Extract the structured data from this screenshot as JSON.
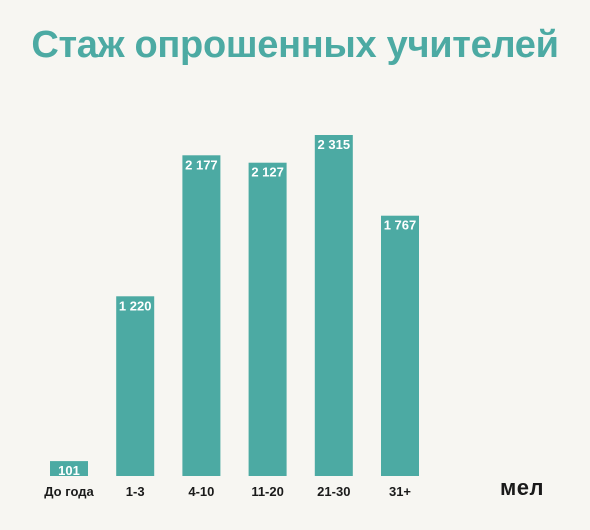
{
  "title": "Стаж опрошенных учителей",
  "logo": "мел",
  "colors": {
    "bar": "#4caaa3",
    "title": "#4caaa3",
    "label": "#1a1a1a",
    "value_text": "#ffffff",
    "background": "#f7f6f2"
  },
  "chart_data": {
    "type": "bar",
    "categories": [
      "До года",
      "1-3",
      "4-10",
      "11-20",
      "21-30",
      "31+"
    ],
    "values": [
      101,
      1220,
      2177,
      2127,
      2315,
      1767
    ],
    "value_labels": [
      "101",
      "1 220",
      "2 177",
      "2 127",
      "2 315",
      "1 767"
    ],
    "title": "Стаж опрошенных учителей",
    "xlabel": "",
    "ylabel": "",
    "ylim": [
      0,
      2315
    ],
    "grid": false,
    "legend": "none"
  }
}
